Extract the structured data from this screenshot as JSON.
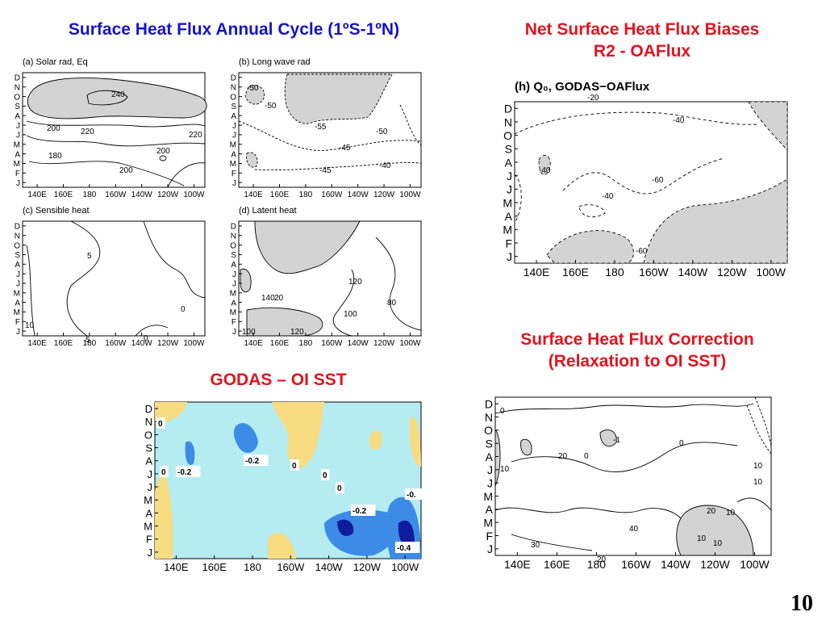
{
  "titles": {
    "annual_cycle": "Surface Heat Flux Annual Cycle (1ºS-1ºN)",
    "biases_line1": "Net Surface Heat Flux Biases",
    "biases_line2": "R2 - OAFlux",
    "godas_sst": "GODAS – OI SST",
    "correction_line1": "Surface Heat Flux Correction",
    "correction_line2": "(Relaxation to OI SST)"
  },
  "page_number": "10",
  "colors": {
    "title_blue": "#1515c8",
    "title_red": "#e0141e",
    "shade": "#d3d3d3",
    "sst_bg": "#b4ecf2",
    "sst_yellow": "#f7dc82",
    "sst_blue": "#3c8be6",
    "sst_navy": "#101c9c"
  },
  "chart_data": [
    {
      "type": "heatmap",
      "title": "(a)  Solar rad, Eq",
      "x_ticks": [
        "140E",
        "160E",
        "180",
        "160W",
        "140W",
        "120W",
        "100W"
      ],
      "y_ticks": [
        "D",
        "N",
        "O",
        "S",
        "A",
        "J",
        "J",
        "M",
        "A",
        "M",
        "F",
        "J"
      ],
      "contour_labels": [
        "240",
        "200",
        "220",
        "220",
        "180",
        "200",
        "200"
      ],
      "shaded_region": "values above 220"
    },
    {
      "type": "heatmap",
      "title": "(b)  Long wave rad",
      "x_ticks": [
        "140E",
        "160E",
        "180",
        "160W",
        "140W",
        "120W",
        "100W"
      ],
      "y_ticks": [
        "D",
        "N",
        "O",
        "S",
        "A",
        "J",
        "J",
        "M",
        "A",
        "M",
        "F",
        "J"
      ],
      "contour_labels": [
        "-50",
        "-50",
        "-55",
        "-50",
        "-45",
        "-40",
        "-45"
      ],
      "shaded_region": "values below -50"
    },
    {
      "type": "heatmap",
      "title": "(c)  Sensible heat",
      "x_ticks": [
        "140E",
        "160E",
        "180",
        "160W",
        "140W",
        "120W",
        "100W"
      ],
      "y_ticks": [
        "D",
        "N",
        "O",
        "S",
        "A",
        "J",
        "J",
        "M",
        "A",
        "M",
        "F",
        "J"
      ],
      "contour_labels": [
        "5",
        "0",
        "10",
        "5",
        "0"
      ]
    },
    {
      "type": "heatmap",
      "title": "(d)  Latent heat",
      "x_ticks": [
        "140E",
        "160E",
        "180",
        "160W",
        "140W",
        "120W",
        "100W"
      ],
      "y_ticks": [
        "D",
        "N",
        "O",
        "S",
        "A",
        "J",
        "J",
        "M",
        "A",
        "M",
        "F",
        "J"
      ],
      "contour_labels": [
        "120",
        "140",
        "20",
        "100",
        "80",
        "100",
        "120"
      ],
      "shaded_region": "values above 120"
    },
    {
      "type": "heatmap",
      "title": "(h)  Q₀,  GODAS−OAFlux",
      "x_ticks": [
        "140E",
        "160E",
        "180",
        "160W",
        "140W",
        "120W",
        "100W"
      ],
      "y_ticks": [
        "D",
        "N",
        "O",
        "S",
        "A",
        "J",
        "J",
        "M",
        "A",
        "M",
        "F",
        "J"
      ],
      "contour_labels": [
        "-20",
        "-40",
        "-40",
        "-60",
        "-40",
        "-60"
      ],
      "shaded_region": "values below -60"
    },
    {
      "type": "heatmap",
      "x_ticks": [
        "140E",
        "160E",
        "180",
        "160W",
        "140W",
        "120W",
        "100W"
      ],
      "y_ticks": [
        "D",
        "N",
        "O",
        "S",
        "A",
        "J",
        "J",
        "M",
        "A",
        "M",
        "F",
        "J"
      ],
      "contour_labels": [
        "0",
        "0",
        "-0.2",
        "-0.2",
        "0",
        "0",
        "0",
        "-0.2",
        "-0.",
        "-0.4"
      ],
      "color_levels": [
        "< -0.4",
        "-0.4 to -0.2",
        "-0.2 to 0",
        "0 to 0.2",
        "> 0.2"
      ]
    },
    {
      "type": "heatmap",
      "x_ticks": [
        "140E",
        "160E",
        "180",
        "160W",
        "140W",
        "120W",
        "100W"
      ],
      "y_ticks": [
        "D",
        "N",
        "O",
        "S",
        "A",
        "J",
        "J",
        "M",
        "A",
        "M",
        "F",
        "J"
      ],
      "contour_labels": [
        "0",
        "10",
        "20",
        "0",
        "0",
        "-1",
        "10",
        "10",
        "20",
        "10",
        "30",
        "20",
        "40",
        "10",
        "10"
      ],
      "shaded_region": "values above 20"
    }
  ]
}
